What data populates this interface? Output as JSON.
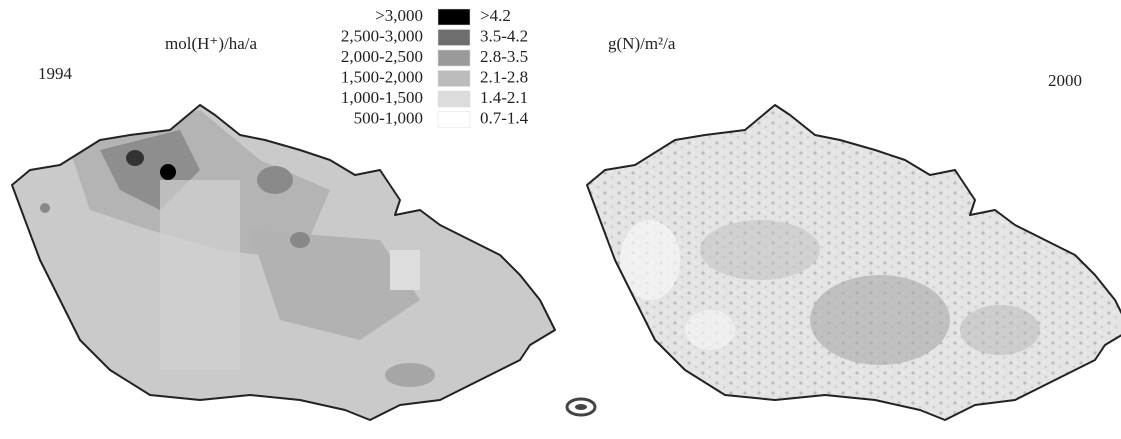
{
  "maps": [
    {
      "year": "1994"
    },
    {
      "year": "2000"
    }
  ],
  "legend": {
    "left_unit": "mol(H⁺)/ha/a",
    "right_unit": "g(N)/m²/a",
    "items": [
      {
        "left": ">3,000",
        "right": ">4.2",
        "color": "#000000"
      },
      {
        "left": "2,500-3,000",
        "right": "3.5-4.2",
        "color": "#6e6e6e"
      },
      {
        "left": "2,000-2,500",
        "right": "2.8-3.5",
        "color": "#9a9a9a"
      },
      {
        "left": "1,500-2,000",
        "right": "2.1-2.8",
        "color": "#bcbcbc"
      },
      {
        "left": "1,000-1,500",
        "right": "1.4-2.1",
        "color": "#dcdcdc"
      },
      {
        "left": "500-1,000",
        "right": "0.7-1.4",
        "color": "#ffffff"
      }
    ]
  }
}
